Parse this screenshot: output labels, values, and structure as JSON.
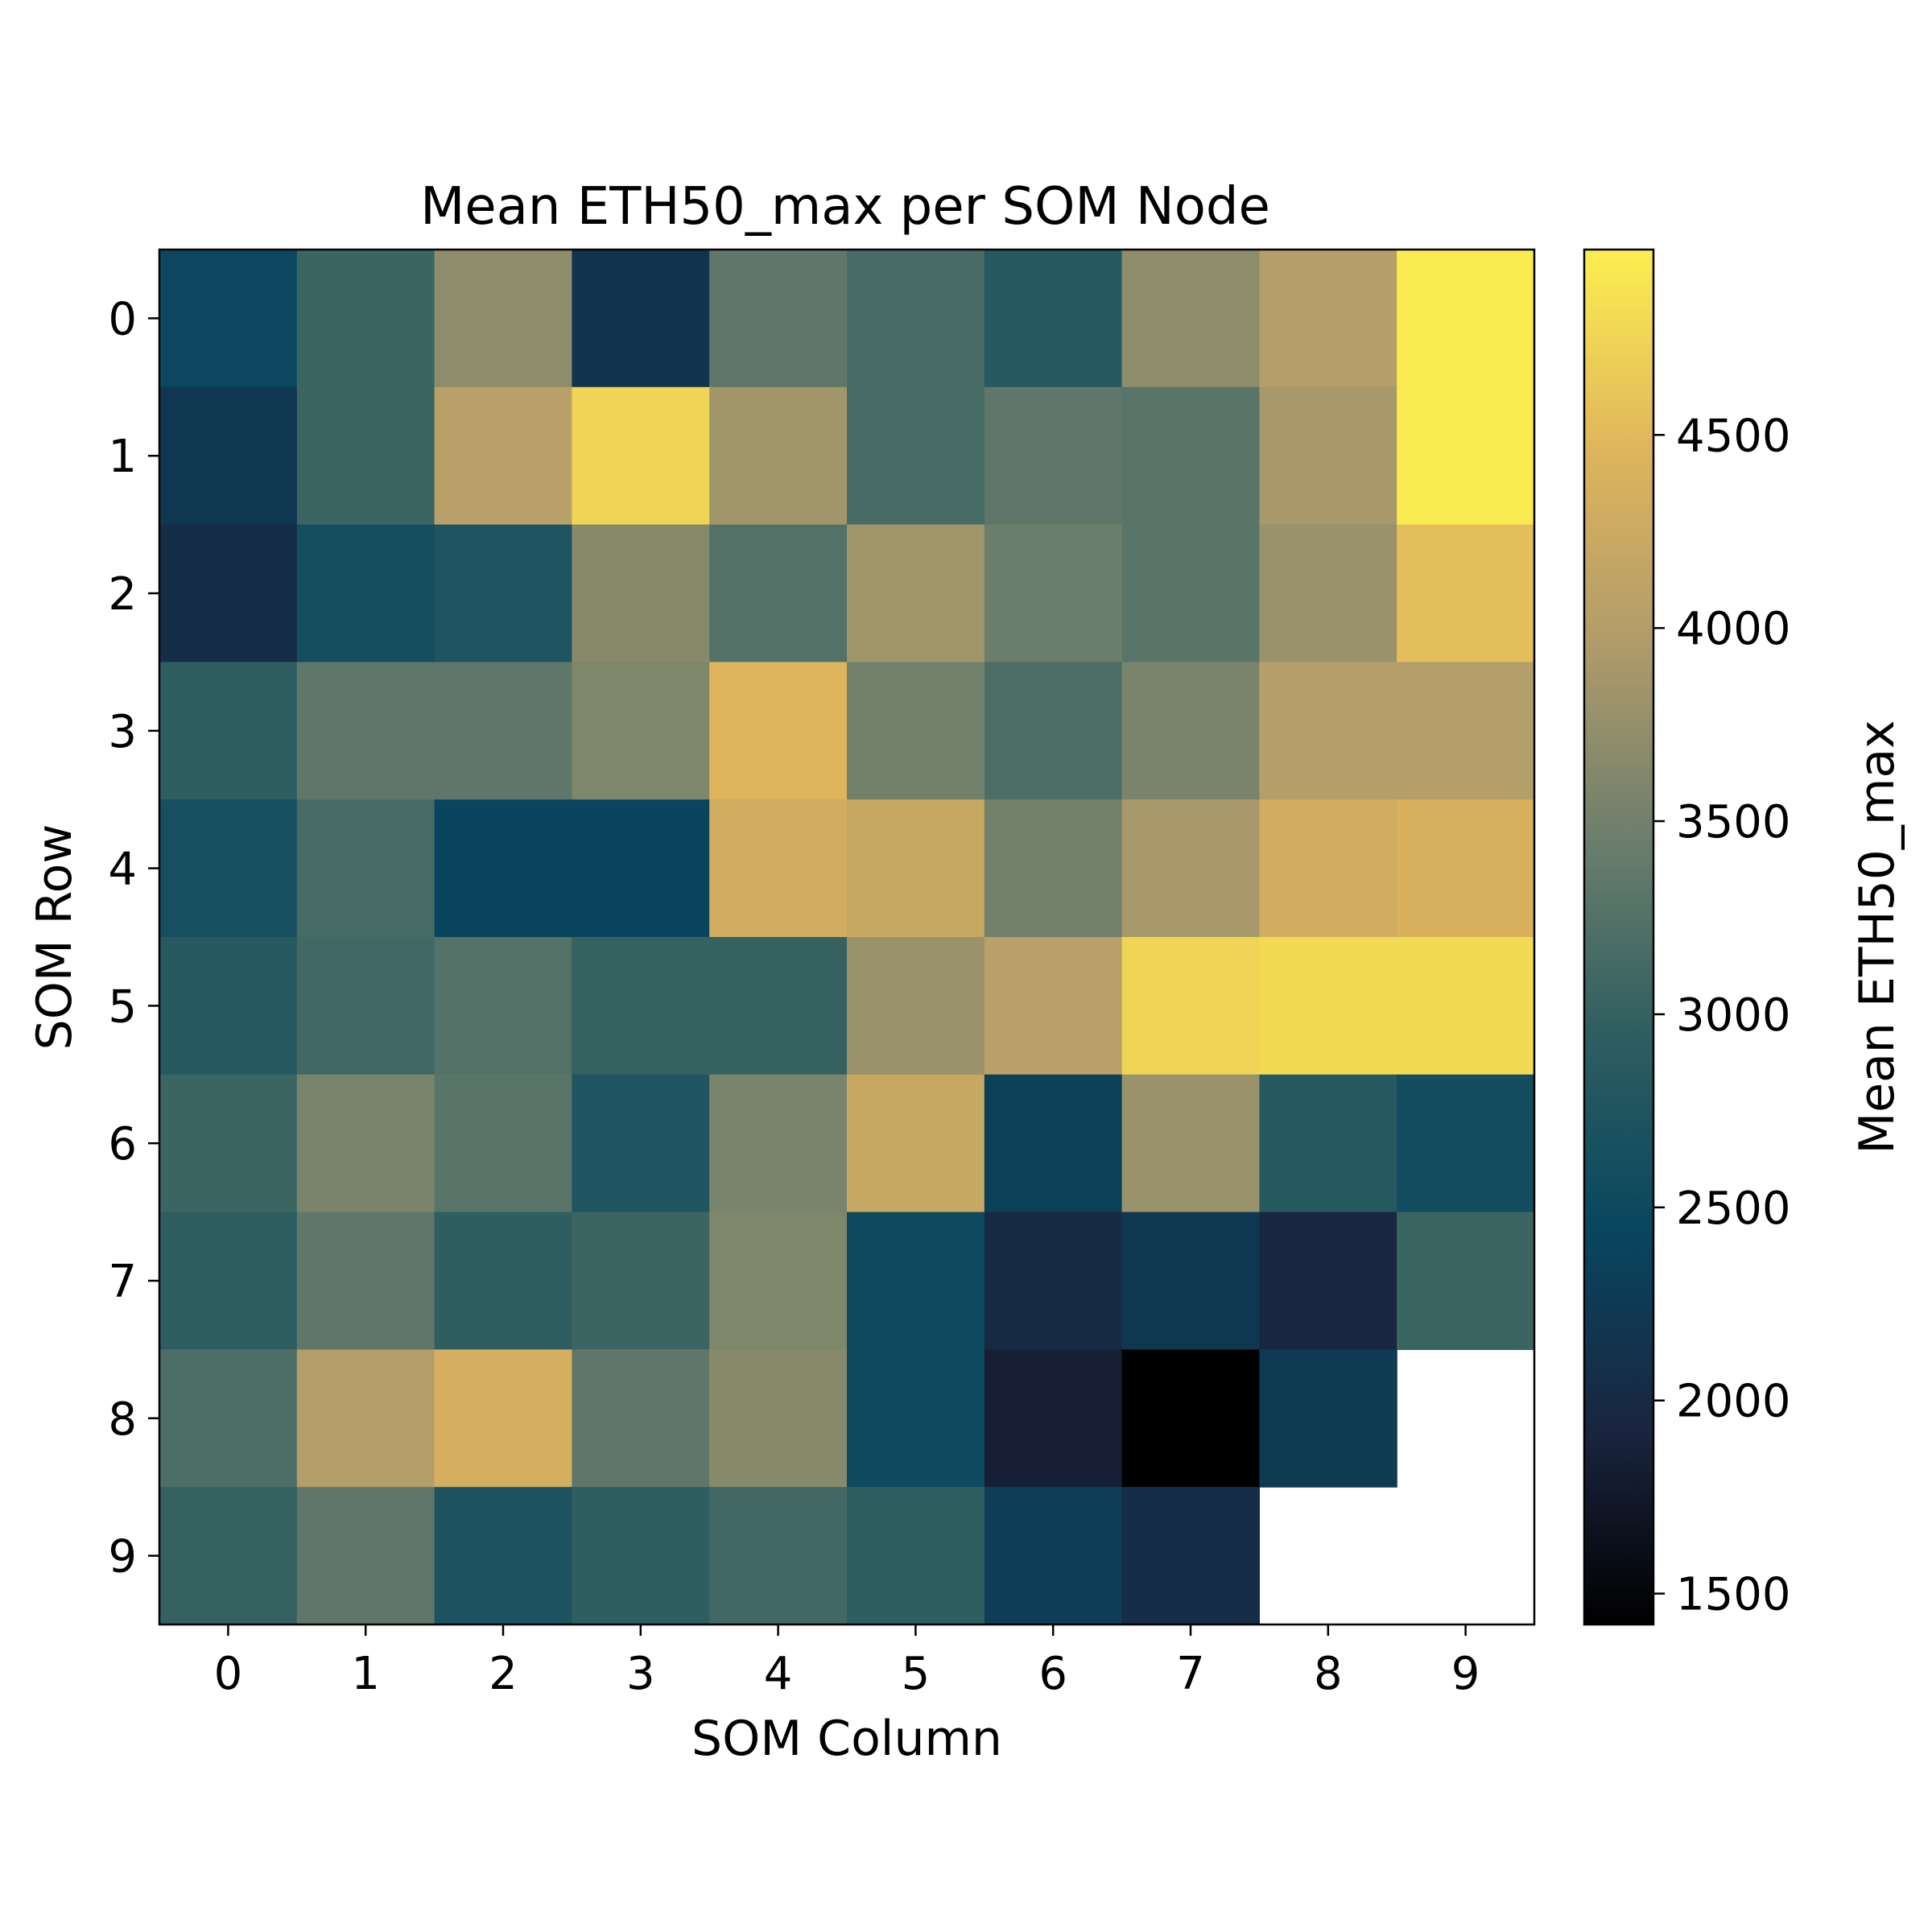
{
  "chart_data": {
    "type": "heatmap",
    "title": "Mean ETH50_max per SOM Node",
    "xlabel": "SOM Column",
    "ylabel": "SOM Row",
    "x_categories": [
      "0",
      "1",
      "2",
      "3",
      "4",
      "5",
      "6",
      "7",
      "8",
      "9"
    ],
    "y_categories": [
      "0",
      "1",
      "2",
      "3",
      "4",
      "5",
      "6",
      "7",
      "8",
      "9"
    ],
    "values": [
      [
        2480,
        3050,
        3700,
        2150,
        3350,
        3150,
        2850,
        3700,
        4000,
        4950
      ],
      [
        2200,
        3050,
        4050,
        4750,
        3850,
        3150,
        3350,
        3300,
        3900,
        4950
      ],
      [
        2050,
        2600,
        2750,
        3650,
        3250,
        3850,
        3450,
        3300,
        3800,
        4550
      ],
      [
        2950,
        3350,
        3350,
        3600,
        4450,
        3500,
        3200,
        3550,
        4000,
        4000
      ],
      [
        2620,
        3150,
        2420,
        2420,
        4300,
        4200,
        3500,
        3900,
        4300,
        4400
      ],
      [
        2850,
        3100,
        3250,
        3000,
        3000,
        3800,
        4050,
        4750,
        4800,
        4800
      ],
      [
        3050,
        3550,
        3300,
        2750,
        3550,
        4200,
        2330,
        3800,
        2850,
        2580
      ],
      [
        2950,
        3350,
        2950,
        3050,
        3600,
        2520,
        2000,
        2200,
        1950,
        3050
      ],
      [
        3200,
        4000,
        4350,
        3350,
        3650,
        2520,
        1850,
        1420,
        2250,
        null
      ],
      [
        3000,
        3350,
        2720,
        2950,
        3100,
        2950,
        2300,
        2050,
        null,
        null
      ]
    ],
    "colorbar": {
      "label": "Mean ETH50_max",
      "vmin": 1420,
      "vmax": 4980,
      "ticks": [
        1500,
        2000,
        2500,
        3000,
        3500,
        4000,
        4500
      ],
      "tick_labels": [
        "1500",
        "2000",
        "2500",
        "3000",
        "3500",
        "4000",
        "4500"
      ],
      "colormap": "cividis-like",
      "stops": [
        "#000000",
        "#1a2540",
        "#08465f",
        "#2e5e60",
        "#6c7e6c",
        "#b09c6a",
        "#e0b55c",
        "#fcee50"
      ]
    },
    "missing_cells": "blank (white)",
    "grid": false
  }
}
